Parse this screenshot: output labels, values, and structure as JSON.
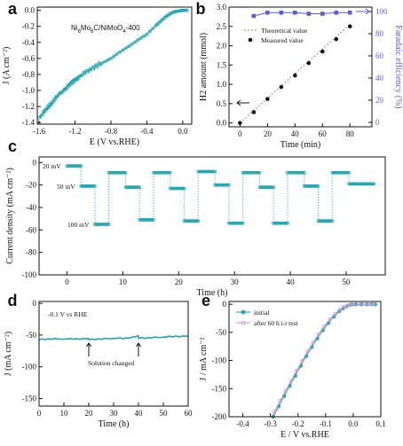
{
  "chart_data": [
    {
      "panel": "a",
      "type": "line",
      "xlabel": "E (V vs.RHE)",
      "ylabel": "J (A cm⁻²)",
      "xticks": [
        "-1.6",
        "-1.2",
        "-0.8",
        "-0.4",
        "0.0"
      ],
      "yticks": [
        "0.0",
        "-0.2",
        "-0.4",
        "-0.6",
        "-0.8",
        "-1.0",
        "-1.2",
        "-1.4"
      ],
      "xlim": [
        -1.62,
        0.1
      ],
      "ylim": [
        -1.42,
        0.04
      ],
      "annotation": "Ni6Mo6C/NiMoO4-400",
      "color": "#1ba8b4",
      "series": [
        {
          "x": [
            -1.6,
            -1.55,
            -1.5,
            -1.45,
            -1.4,
            -1.35,
            -1.3,
            -1.25,
            -1.2,
            -1.15,
            -1.1,
            -1.0,
            -0.9,
            -0.8,
            -0.7,
            -0.6,
            -0.5,
            -0.4,
            -0.3,
            -0.25,
            -0.2,
            -0.15,
            -0.1,
            -0.05,
            0.0,
            0.05
          ],
          "y": [
            -1.34,
            -1.28,
            -1.22,
            -1.16,
            -1.08,
            -1.02,
            -0.96,
            -0.9,
            -0.86,
            -0.83,
            -0.79,
            -0.73,
            -0.66,
            -0.6,
            -0.52,
            -0.45,
            -0.37,
            -0.3,
            -0.19,
            -0.14,
            -0.09,
            -0.05,
            -0.02,
            -0.01,
            0.0,
            0.0
          ]
        }
      ]
    },
    {
      "panel": "b",
      "type": "scatter",
      "xlabel": "Time (min)",
      "ylabel": "H2 amount (mmol)",
      "ylabel_right": "Faradaic efficiency (%)",
      "xticks": [
        "0",
        "20",
        "40",
        "60",
        "80"
      ],
      "yticks": [
        "0.0",
        "0.5",
        "1.0",
        "1.5",
        "2.0",
        "2.5",
        "3.0"
      ],
      "yticks_right": [
        "0",
        "20",
        "40",
        "60",
        "80",
        "100"
      ],
      "xlim": [
        -8,
        96
      ],
      "ylim": [
        -0.1,
        3.0
      ],
      "ylim_right": [
        -4,
        104
      ],
      "legend": "top-left",
      "series": [
        {
          "name": "Theoretical value",
          "style": "dotted-line",
          "color": "#e05a8a",
          "x": [
            0,
            80
          ],
          "y": [
            0.0,
            2.55
          ]
        },
        {
          "name": "Measured value",
          "style": "circles",
          "color": "#111111",
          "x": [
            0,
            10,
            20,
            30,
            40,
            50,
            60,
            70,
            80
          ],
          "y": [
            0.0,
            0.28,
            0.62,
            0.93,
            1.23,
            1.55,
            1.85,
            2.17,
            2.5
          ]
        },
        {
          "style": "squares-line",
          "axis": "right",
          "color": "#5b5be0",
          "x": [
            10,
            20,
            30,
            40,
            50,
            60,
            70,
            80
          ],
          "y": [
            96,
            99,
            99,
            99,
            98,
            98,
            99,
            99
          ]
        }
      ]
    },
    {
      "panel": "c",
      "type": "line",
      "xlabel": "Time (h)",
      "ylabel": "Current density (mA cm⁻²)",
      "xticks": [
        "0",
        "10",
        "20",
        "30",
        "40",
        "50"
      ],
      "yticks": [
        "0",
        "-20",
        "-40",
        "-60",
        "-80",
        "-100"
      ],
      "xlim": [
        -5,
        57
      ],
      "ylim": [
        -100,
        5
      ],
      "color": "#1ba8b4",
      "annotations": [
        "20 mV",
        "50 mV",
        "100 mV"
      ],
      "series": [
        {
          "steps": [
            {
              "x0": 0,
              "x1": 2.5,
              "y": -3
            },
            {
              "x0": 2.5,
              "x1": 5,
              "y": -21
            },
            {
              "x0": 5,
              "x1": 7.5,
              "y": -55
            },
            {
              "x0": 7.5,
              "x1": 10.5,
              "y": -9
            },
            {
              "x0": 10.5,
              "x1": 13,
              "y": -22
            },
            {
              "x0": 13,
              "x1": 15.5,
              "y": -51
            },
            {
              "x0": 15.5,
              "x1": 18.5,
              "y": -9
            },
            {
              "x0": 18.5,
              "x1": 21,
              "y": -23
            },
            {
              "x0": 21,
              "x1": 23.5,
              "y": -52
            },
            {
              "x0": 23.5,
              "x1": 26.5,
              "y": -8
            },
            {
              "x0": 26.5,
              "x1": 29,
              "y": -20
            },
            {
              "x0": 29,
              "x1": 31.5,
              "y": -54
            },
            {
              "x0": 31.5,
              "x1": 34.5,
              "y": -9
            },
            {
              "x0": 34.5,
              "x1": 37,
              "y": -22
            },
            {
              "x0": 37,
              "x1": 39.5,
              "y": -54
            },
            {
              "x0": 39.5,
              "x1": 42.5,
              "y": -9
            },
            {
              "x0": 42.5,
              "x1": 45,
              "y": -21
            },
            {
              "x0": 45,
              "x1": 47.5,
              "y": -52
            },
            {
              "x0": 47.5,
              "x1": 50.5,
              "y": -9
            },
            {
              "x0": 50.5,
              "x1": 53,
              "y": -19
            },
            {
              "x0": 53,
              "x1": 55,
              "y": -19
            }
          ]
        }
      ]
    },
    {
      "panel": "d",
      "type": "line",
      "xlabel": "Time (h)",
      "ylabel": "J (mA cm⁻²)",
      "xticks": [
        "0",
        "10",
        "20",
        "30",
        "40",
        "50",
        "60"
      ],
      "yticks": [
        "0",
        "-50",
        "-100",
        "-150"
      ],
      "xlim": [
        0,
        60
      ],
      "ylim": [
        -162,
        3
      ],
      "color": "#1ba8b4",
      "annotations": [
        "-0.1 V vs RHE",
        "Solution changed"
      ],
      "arrows_at_x": [
        20,
        40
      ],
      "series": [
        {
          "x": [
            0,
            5,
            10,
            15,
            19.9,
            20.1,
            25,
            30,
            35,
            39.9,
            40.1,
            45,
            50,
            55,
            60
          ],
          "y": [
            -57,
            -56,
            -56,
            -56,
            -56,
            -57,
            -56,
            -55,
            -55,
            -52,
            -55,
            -54,
            -53,
            -52,
            -52
          ]
        }
      ]
    },
    {
      "panel": "e",
      "type": "line",
      "xlabel": "E / V vs.RHE",
      "ylabel": "J / mA cm⁻²",
      "xticks": [
        "-0.4",
        "-0.3",
        "-0.2",
        "-0.1",
        "0.0",
        "0.1"
      ],
      "yticks": [
        "0",
        "-50",
        "-100",
        "-150",
        "-200"
      ],
      "xlim": [
        -0.45,
        0.1
      ],
      "ylim": [
        -200,
        5
      ],
      "legend": "top-left",
      "series": [
        {
          "name": "initial",
          "color": "#1ba8b4",
          "marker": "circle",
          "x": [
            -0.29,
            -0.26,
            -0.23,
            -0.2,
            -0.17,
            -0.14,
            -0.11,
            -0.08,
            -0.05,
            -0.03,
            -0.01,
            0.0,
            0.03,
            0.06,
            0.08
          ],
          "y": [
            -200,
            -172,
            -145,
            -118,
            -92,
            -68,
            -46,
            -27,
            -12,
            -5,
            -1,
            0,
            0,
            0,
            0
          ]
        },
        {
          "name": "after 60 h i-t test",
          "color": "#c79ad6",
          "marker": "circle",
          "x": [
            -0.295,
            -0.265,
            -0.235,
            -0.205,
            -0.175,
            -0.145,
            -0.115,
            -0.085,
            -0.055,
            -0.035,
            -0.015,
            -0.005,
            0.03,
            0.06,
            0.08
          ],
          "y": [
            -200,
            -172,
            -145,
            -118,
            -92,
            -68,
            -46,
            -27,
            -12,
            -5,
            -1,
            0,
            0,
            0,
            0
          ]
        }
      ]
    }
  ],
  "panel_labels": [
    "a",
    "b",
    "c",
    "d",
    "e"
  ]
}
